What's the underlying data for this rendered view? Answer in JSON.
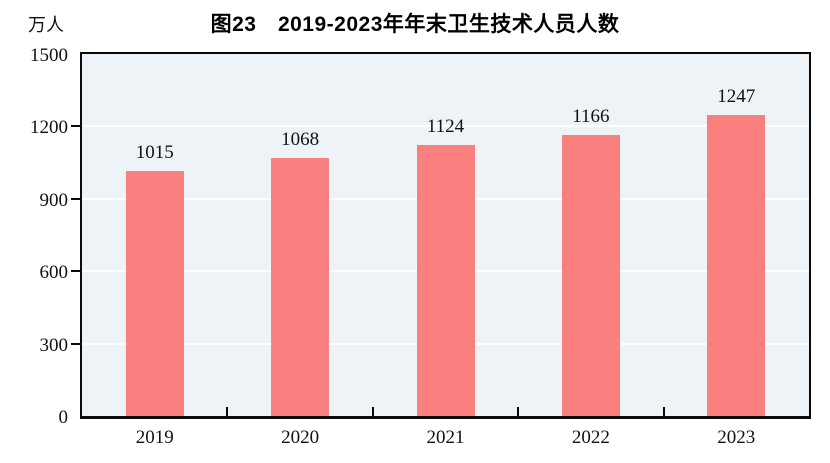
{
  "chart_data": {
    "type": "bar",
    "title": "图23　2019-2023年年末卫生技术人员人数",
    "unit_label": "万人",
    "categories": [
      "2019",
      "2020",
      "2021",
      "2022",
      "2023"
    ],
    "values": [
      1015,
      1068,
      1124,
      1166,
      1247
    ],
    "ylabel": "万人",
    "xlabel": "",
    "ylim": [
      0,
      1500
    ],
    "yticks": [
      0,
      300,
      600,
      900,
      1200,
      1500
    ],
    "grid": true,
    "legend_position": "none",
    "data_labels": true,
    "colors": {
      "bar": "#FA8080",
      "plot_background": "#EDF3F6",
      "gridline": "#FFFFFF",
      "axis": "#0A0A0A",
      "text": "#111111"
    }
  }
}
